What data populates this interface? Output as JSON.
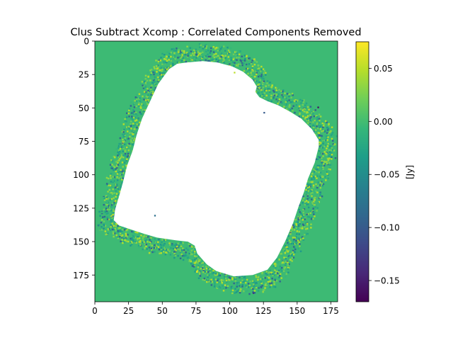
{
  "chart_data": {
    "type": "heatmap",
    "title": "Clus Subtract Xcomp : Correlated Components Removed",
    "x_range": [
      0,
      180
    ],
    "y_range": [
      0,
      195
    ],
    "y_inverted": true,
    "x_ticks": [
      0,
      25,
      50,
      75,
      100,
      125,
      150,
      175
    ],
    "y_ticks": [
      0,
      25,
      50,
      75,
      100,
      125,
      150,
      175
    ],
    "x_tick_labels": [
      "0",
      "25",
      "50",
      "75",
      "100",
      "125",
      "150",
      "175"
    ],
    "y_tick_labels": [
      "0",
      "25",
      "50",
      "75",
      "100",
      "125",
      "150",
      "175"
    ],
    "colormap": "viridis",
    "background_value": 0.0,
    "background_color": "#3dba74",
    "masked_region_color": "#ffffff",
    "masked_region": "blank (no data) central region with rotated, lobed square outline",
    "masked_outline": [
      [
        68,
        16
      ],
      [
        80,
        15
      ],
      [
        91,
        16
      ],
      [
        102,
        19
      ],
      [
        110,
        23
      ],
      [
        117,
        29
      ],
      [
        120,
        34
      ],
      [
        119,
        38
      ],
      [
        122,
        42
      ],
      [
        128,
        45
      ],
      [
        136,
        48
      ],
      [
        145,
        53
      ],
      [
        153,
        58
      ],
      [
        161,
        66
      ],
      [
        166,
        74
      ],
      [
        166,
        79
      ],
      [
        163,
        91
      ],
      [
        158,
        103
      ],
      [
        155,
        113
      ],
      [
        151,
        124
      ],
      [
        147,
        136
      ],
      [
        141,
        150
      ],
      [
        135,
        162
      ],
      [
        128,
        171
      ],
      [
        117,
        175
      ],
      [
        103,
        176
      ],
      [
        90,
        172
      ],
      [
        83,
        167
      ],
      [
        76,
        159
      ],
      [
        74,
        153
      ],
      [
        69,
        150
      ],
      [
        60,
        149
      ],
      [
        46,
        147
      ],
      [
        36,
        144
      ],
      [
        27,
        141
      ],
      [
        18,
        138
      ],
      [
        14,
        134
      ],
      [
        15,
        126
      ],
      [
        18,
        116
      ],
      [
        21,
        105
      ],
      [
        24,
        93
      ],
      [
        28,
        82
      ],
      [
        31,
        70
      ],
      [
        35,
        58
      ],
      [
        41,
        45
      ],
      [
        47,
        32
      ],
      [
        55,
        21
      ],
      [
        61,
        17
      ]
    ],
    "noise_ring_colors": [
      "#35b779",
      "#6ece58",
      "#26a784",
      "#90d743",
      "#1f9a8a",
      "#b5de2b",
      "#31688e"
    ],
    "notable_pixels": [
      {
        "x": 165,
        "y": 49,
        "value": -0.16
      },
      {
        "x": 163,
        "y": 51,
        "value": -0.11
      },
      {
        "x": 125,
        "y": 53,
        "value": -0.1
      },
      {
        "x": 117,
        "y": 188,
        "value": -0.13
      },
      {
        "x": 103,
        "y": 23,
        "value": 0.05
      },
      {
        "x": 75,
        "y": 172,
        "value": 0.07
      },
      {
        "x": 96,
        "y": 182,
        "value": 0.06
      },
      {
        "x": 12,
        "y": 122,
        "value": -0.09
      },
      {
        "x": 11,
        "y": 100,
        "value": 0.04
      },
      {
        "x": 149,
        "y": 137,
        "value": 0.05
      },
      {
        "x": 44,
        "y": 130,
        "value": -0.08
      }
    ],
    "colorbar": {
      "label": "[Jy]",
      "min": -0.17,
      "max": 0.075,
      "ticks": [
        0.05,
        0.0,
        -0.05,
        -0.1,
        -0.15
      ],
      "tick_labels": [
        "0.05",
        "0.00",
        "−0.05",
        "−0.10",
        "−0.15"
      ],
      "stops": [
        "#440154",
        "#482878",
        "#3e4a89",
        "#31688e",
        "#26828e",
        "#1f9e89",
        "#35b779",
        "#6ece58",
        "#b5de2b",
        "#fde725"
      ]
    }
  }
}
